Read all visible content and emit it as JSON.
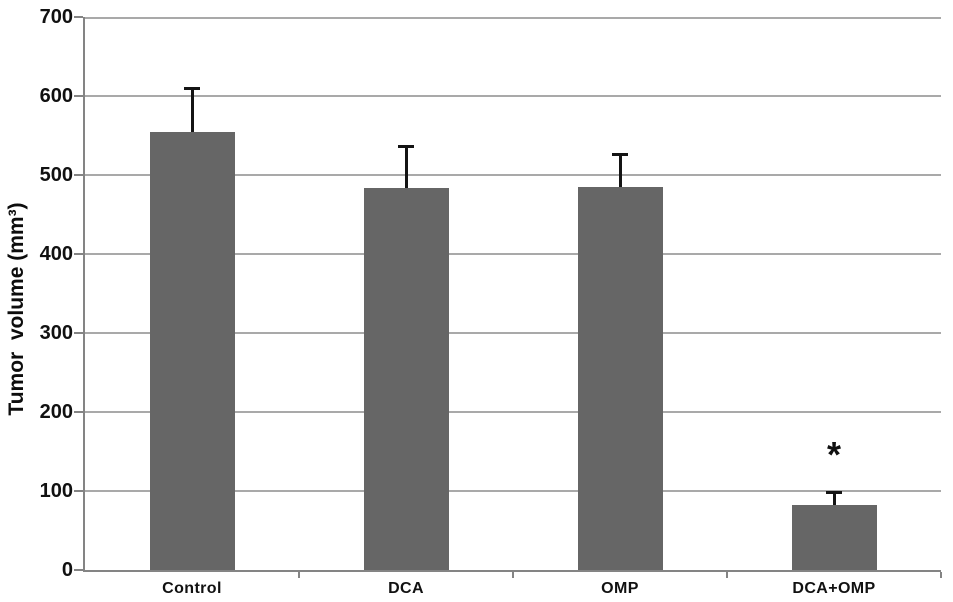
{
  "chart_data": {
    "type": "bar",
    "title": "",
    "xlabel": "",
    "ylabel": "Tumor  volume (mm³)",
    "categories": [
      "Control",
      "DCA",
      "OMP",
      "DCA+OMP"
    ],
    "values": [
      555,
      483,
      485,
      82
    ],
    "errors_plus": [
      55,
      54,
      42,
      17
    ],
    "ylim": [
      0,
      700
    ],
    "ytick_step": 100,
    "yticks": [
      0,
      100,
      200,
      300,
      400,
      500,
      600,
      700
    ],
    "grid": "horizontal",
    "legend": "none",
    "annotations": [
      {
        "category_index": 3,
        "text": "*"
      }
    ],
    "colors": {
      "bar": "#666666",
      "error_bar": "#141414",
      "gridline": "#a9a9a9",
      "axis": "#848484",
      "text": "#111111",
      "background": "#ffffff"
    }
  }
}
